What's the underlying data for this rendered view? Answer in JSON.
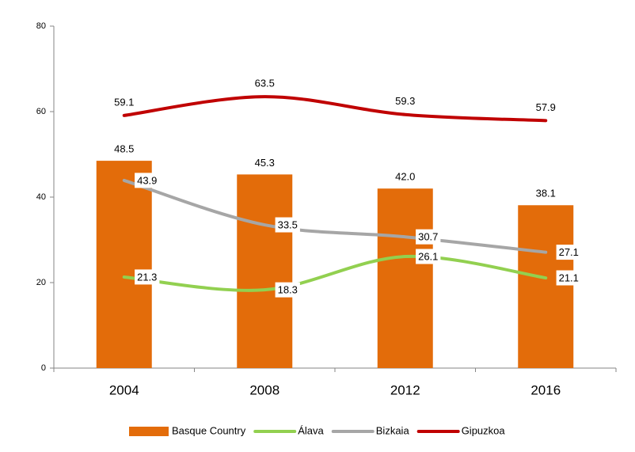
{
  "chart_data": {
    "type": "combo",
    "categories": [
      "2004",
      "2008",
      "2012",
      "2016"
    ],
    "series": [
      {
        "name": "Basque Country",
        "type": "bar",
        "color": "#e36c0a",
        "values": [
          48.5,
          45.3,
          42.0,
          38.1
        ],
        "value_labels": [
          "48.5",
          "45.3",
          "42.0",
          "38.1"
        ]
      },
      {
        "name": "Álava",
        "type": "line",
        "color": "#92d050",
        "values": [
          21.3,
          18.3,
          26.1,
          21.1
        ]
      },
      {
        "name": "Bizkaia",
        "type": "line",
        "color": "#a6a6a6",
        "values": [
          43.9,
          33.5,
          30.7,
          27.1
        ]
      },
      {
        "name": "Gipuzkoa",
        "type": "line",
        "color": "#c00000",
        "values": [
          59.1,
          63.5,
          59.3,
          57.9
        ]
      }
    ],
    "ylim": [
      0,
      80
    ],
    "yticks": [
      0,
      20,
      40,
      60,
      80
    ],
    "grid": false,
    "legend": "bottom"
  }
}
